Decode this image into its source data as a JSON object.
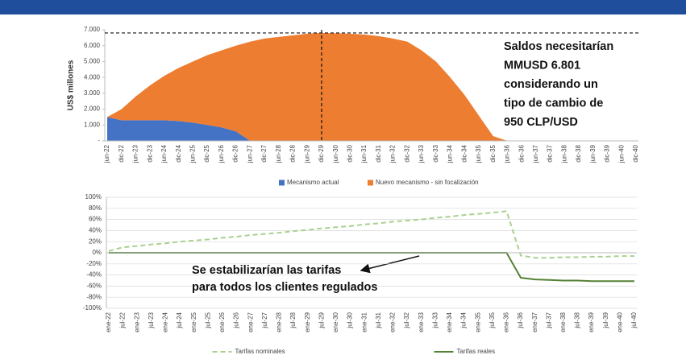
{
  "chart_data": [
    {
      "type": "area",
      "ylabel": "US$ millones",
      "categories": [
        "jun-22",
        "dic-22",
        "jun-23",
        "dic-23",
        "jun-24",
        "dic-24",
        "jun-25",
        "dic-25",
        "jun-26",
        "dic-26",
        "jun-27",
        "dic-27",
        "jun-28",
        "dic-28",
        "jun-29",
        "dic-29",
        "jun-30",
        "dic-30",
        "jun-31",
        "dic-31",
        "jun-32",
        "dic-32",
        "jun-33",
        "dic-33",
        "jun-34",
        "dic-34",
        "jun-35",
        "dic-35",
        "jun-36",
        "dic-36",
        "jun-37",
        "dic-37",
        "jun-38",
        "dic-38",
        "jun-39",
        "dic-39",
        "jun-40",
        "dic-40"
      ],
      "series": [
        {
          "name": "Mecanismo actual",
          "color": "#4472c4",
          "values": [
            1500,
            1300,
            1300,
            1300,
            1300,
            1250,
            1150,
            1000,
            850,
            600,
            0,
            0,
            0,
            0,
            0,
            0,
            0,
            0,
            0,
            0,
            0,
            0,
            0,
            0,
            0,
            0,
            0,
            0,
            0,
            0,
            0,
            0,
            0,
            0,
            0,
            0,
            0,
            0
          ]
        },
        {
          "name": "Nuevo mecanismo - sin focalización",
          "color": "#ed7d31",
          "values": [
            0,
            700,
            1500,
            2200,
            2800,
            3350,
            3850,
            4400,
            4850,
            5400,
            6250,
            6450,
            6550,
            6650,
            6750,
            6801,
            6780,
            6750,
            6700,
            6600,
            6450,
            6250,
            5700,
            5000,
            4000,
            2900,
            1600,
            300,
            0,
            0,
            0,
            0,
            0,
            0,
            0,
            0,
            0,
            0
          ]
        }
      ],
      "stacked": true,
      "ylim": [
        0,
        7000
      ],
      "yticks": [
        {
          "value": 0,
          "label": "-"
        },
        {
          "value": 1000,
          "label": "1.000"
        },
        {
          "value": 2000,
          "label": "2.000"
        },
        {
          "value": 3000,
          "label": "3.000"
        },
        {
          "value": 4000,
          "label": "4.000"
        },
        {
          "value": 5000,
          "label": "5.000"
        },
        {
          "value": 6000,
          "label": "6.000"
        },
        {
          "value": 7000,
          "label": "7.000"
        }
      ],
      "hline": 6801,
      "vline": "dic-29",
      "annotation": [
        "Saldos necesitarían",
        "MMUSD 6.801",
        "considerando un",
        "tipo de cambio de",
        "950 CLP/USD"
      ],
      "legend": "bottom"
    },
    {
      "type": "line",
      "categories": [
        "ene-22",
        "jul-22",
        "ene-23",
        "jul-23",
        "ene-24",
        "jul-24",
        "ene-25",
        "jul-25",
        "ene-26",
        "jul-26",
        "ene-27",
        "jul-27",
        "ene-28",
        "jul-28",
        "ene-29",
        "jul-29",
        "ene-30",
        "jul-30",
        "ene-31",
        "jul-31",
        "ene-32",
        "jul-32",
        "ene-33",
        "jul-33",
        "ene-34",
        "jul-34",
        "ene-35",
        "jul-35",
        "ene-36",
        "jul-36",
        "ene-37",
        "jul-37",
        "ene-38",
        "jul-38",
        "ene-39",
        "jul-39",
        "ene-40",
        "jul-40"
      ],
      "series": [
        {
          "name": "Tarifas nominales",
          "color": "#a9d18e",
          "dashed": true,
          "values": [
            3,
            10,
            12,
            15,
            17,
            20,
            22,
            24,
            27,
            29,
            32,
            34,
            36,
            39,
            41,
            44,
            46,
            48,
            51,
            53,
            56,
            58,
            60,
            63,
            65,
            68,
            70,
            72,
            75,
            -5,
            -9,
            -9,
            -8,
            -8,
            -7,
            -7,
            -6,
            -6
          ]
        },
        {
          "name": "Tarifas reales",
          "color": "#548235",
          "dashed": false,
          "values": [
            0,
            0,
            0,
            0,
            0,
            0,
            0,
            0,
            0,
            0,
            0,
            0,
            0,
            0,
            0,
            0,
            0,
            0,
            0,
            0,
            0,
            0,
            0,
            0,
            0,
            0,
            0,
            0,
            0,
            -45,
            -48,
            -49,
            -50,
            -50,
            -51,
            -51,
            -51,
            -51
          ]
        }
      ],
      "ylim": [
        -100,
        100
      ],
      "yticks": [
        {
          "value": -100,
          "label": "-100%"
        },
        {
          "value": -80,
          "label": "-80%"
        },
        {
          "value": -60,
          "label": "-60%"
        },
        {
          "value": -40,
          "label": "-40%"
        },
        {
          "value": -20,
          "label": "-20%"
        },
        {
          "value": 0,
          "label": "0%"
        },
        {
          "value": 20,
          "label": "20%"
        },
        {
          "value": 40,
          "label": "40%"
        },
        {
          "value": 60,
          "label": "60%"
        },
        {
          "value": 80,
          "label": "80%"
        },
        {
          "value": 100,
          "label": "100%"
        }
      ],
      "grid": true,
      "annotation": [
        "Se estabilizarían las tarifas",
        "para todos los clientes regulados"
      ],
      "legend": "bottom"
    }
  ]
}
